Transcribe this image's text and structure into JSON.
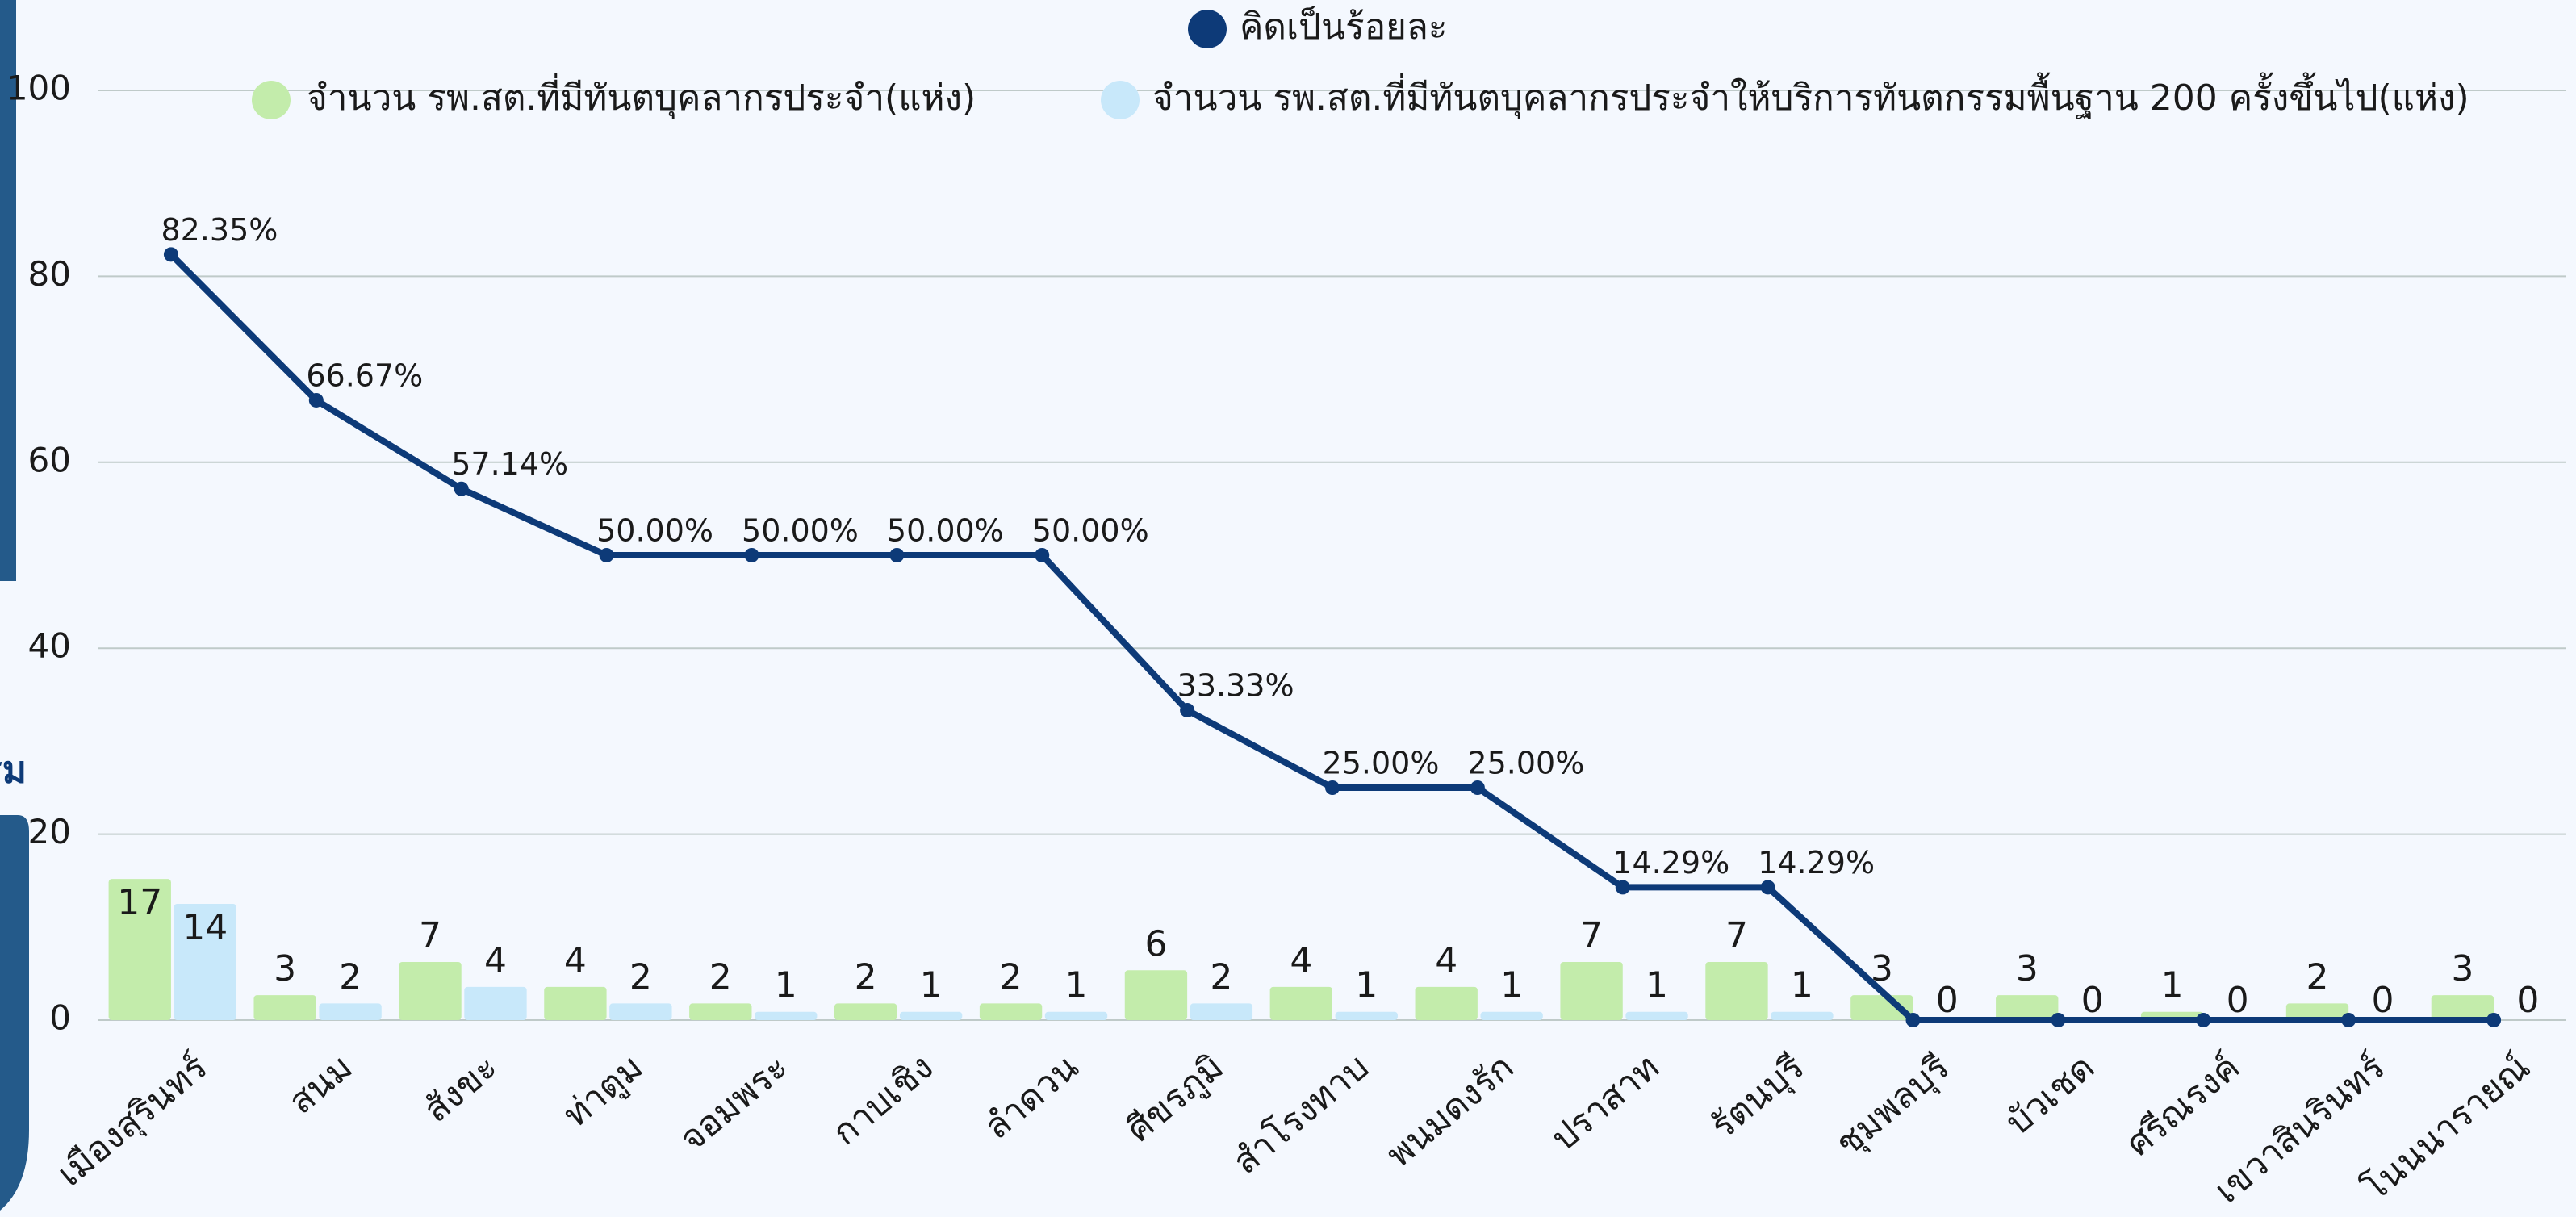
{
  "side_label": "รม",
  "chart_data": {
    "type": "bar_line",
    "categories": [
      "เมืองสุรินทร์",
      "สนม",
      "สังขะ",
      "ท่าตูม",
      "จอมพระ",
      "กาบเชิง",
      "ลำดวน",
      "ศีขรภูมิ",
      "สำโรงทาบ",
      "พนมดงรัก",
      "ปราสาท",
      "รัตนบุรี",
      "ชุมพลบุรี",
      "บัวเชด",
      "ศรีณรงค์",
      "เขวาสินรินทร์",
      "โนนนารายณ์"
    ],
    "series": [
      {
        "name": "จำนวน รพ.สต.ที่มีทันตบุคลากรประจำ(แห่ง)",
        "color": "#c3ecab",
        "axis": "y2",
        "kind": "bar",
        "values": [
          17,
          3,
          7,
          4,
          2,
          2,
          2,
          6,
          4,
          4,
          7,
          7,
          3,
          3,
          1,
          2,
          3
        ]
      },
      {
        "name": "จำนวน รพ.สต.ที่มีทันตบุคลากรประจำให้บริการทันตกรรมพื้นฐาน 200 ครั้งขึ้นไป(แห่ง)",
        "color": "#c8e8fa",
        "axis": "y2",
        "kind": "bar",
        "values": [
          14,
          2,
          4,
          2,
          1,
          1,
          1,
          2,
          1,
          1,
          1,
          1,
          0,
          0,
          0,
          0,
          0
        ]
      },
      {
        "name": "คิดเป็นร้อยละ",
        "color": "#0d3a78",
        "kind": "line",
        "values": [
          82.35,
          66.67,
          57.14,
          50,
          50,
          50,
          50,
          33.33,
          25,
          25,
          14.29,
          14.29,
          0,
          0,
          0,
          0,
          0
        ],
        "value_labels": [
          "82.35%",
          "66.67%",
          "57.14%",
          "50.00%",
          "50.00%",
          "50.00%",
          "50.00%",
          "33.33%",
          "25.00%",
          "25.00%",
          "14.29%",
          "14.29%",
          null,
          null,
          null,
          null,
          null
        ]
      }
    ],
    "ylim": [
      0,
      100
    ],
    "yticks": [
      0,
      20,
      40,
      60,
      80,
      100
    ],
    "y2lim": [
      0,
      112
    ],
    "grid": true
  }
}
